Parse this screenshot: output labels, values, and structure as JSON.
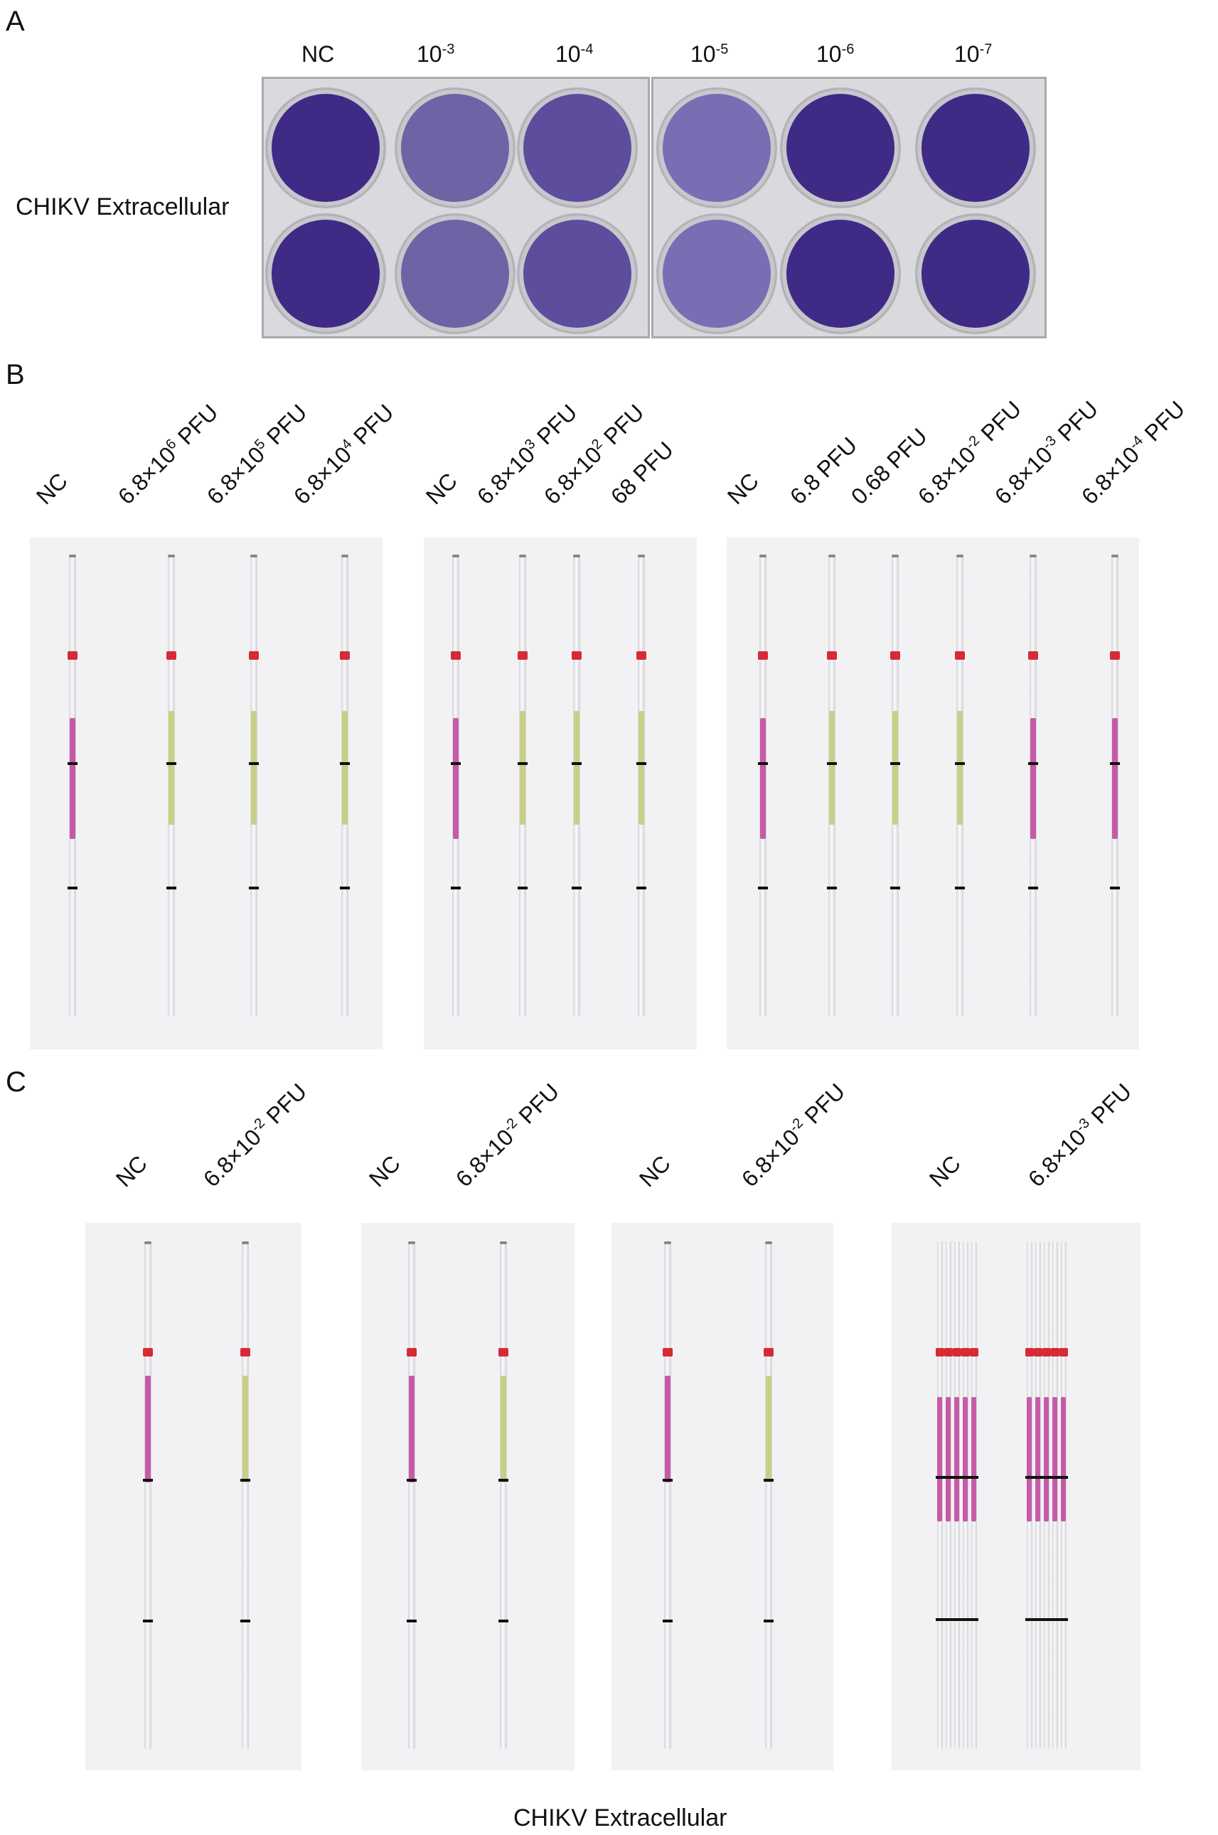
{
  "panel_a": {
    "letter": "A",
    "side_label": "CHIKV Extracellular",
    "columns": [
      {
        "base": "NC",
        "exp": ""
      },
      {
        "base": "10",
        "exp": "-3"
      },
      {
        "base": "10",
        "exp": "-4"
      },
      {
        "base": "10",
        "exp": "-5"
      },
      {
        "base": "10",
        "exp": "-6"
      },
      {
        "base": "10",
        "exp": "-7"
      }
    ]
  },
  "panel_b": {
    "letter": "B",
    "groups": [
      {
        "labels": [
          {
            "base": "NC",
            "exp": "",
            "tail": ""
          },
          {
            "base": "6.8×10",
            "exp": "6",
            "tail": " PFU"
          },
          {
            "base": "6.8×10",
            "exp": "5",
            "tail": " PFU"
          },
          {
            "base": "6.8×10",
            "exp": "4",
            "tail": " PFU"
          }
        ]
      },
      {
        "labels": [
          {
            "base": "NC",
            "exp": "",
            "tail": ""
          },
          {
            "base": "6.8×10",
            "exp": "3",
            "tail": " PFU"
          },
          {
            "base": "6.8×10",
            "exp": "2",
            "tail": " PFU"
          },
          {
            "base": "68 PFU",
            "exp": "",
            "tail": ""
          }
        ]
      },
      {
        "labels": [
          {
            "base": "NC",
            "exp": "",
            "tail": ""
          },
          {
            "base": "6.8 PFU",
            "exp": "",
            "tail": ""
          },
          {
            "base": "0.68 PFU",
            "exp": "",
            "tail": ""
          },
          {
            "base": "6.8×10",
            "exp": "-2",
            "tail": " PFU"
          },
          {
            "base": "6.8×10",
            "exp": "-3",
            "tail": " PFU"
          },
          {
            "base": "6.8×10",
            "exp": "-4",
            "tail": " PFU"
          }
        ]
      }
    ]
  },
  "panel_c": {
    "letter": "C",
    "groups": [
      {
        "labels": [
          {
            "base": "NC",
            "exp": "",
            "tail": ""
          },
          {
            "base": "6.8×10",
            "exp": "-2",
            "tail": " PFU"
          }
        ]
      },
      {
        "labels": [
          {
            "base": "NC",
            "exp": "",
            "tail": ""
          },
          {
            "base": "6.8×10",
            "exp": "-2",
            "tail": " PFU"
          }
        ]
      },
      {
        "labels": [
          {
            "base": "NC",
            "exp": "",
            "tail": ""
          },
          {
            "base": "6.8×10",
            "exp": "-2",
            "tail": " PFU"
          }
        ]
      },
      {
        "labels": [
          {
            "base": "NC",
            "exp": "",
            "tail": ""
          },
          {
            "base": "6.8×10",
            "exp": "-3",
            "tail": " PFU"
          }
        ]
      }
    ],
    "caption": "CHIKV  Extracellular"
  },
  "colors": {
    "stain_purple": "#3f2a86",
    "strip_red": "#d62b35",
    "negative_magenta": "#c75aa8",
    "positive_yellow": "#c9cf86"
  }
}
